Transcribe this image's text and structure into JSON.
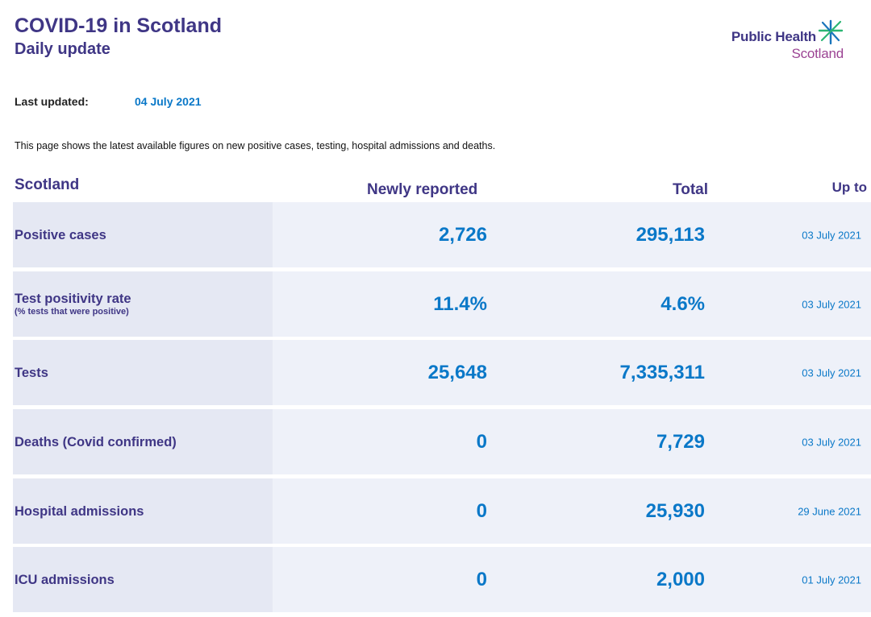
{
  "header": {
    "title": "COVID-19 in Scotland",
    "subtitle": "Daily update"
  },
  "logo": {
    "line1": "Public Health",
    "line2": "Scotland",
    "icon": "star-burst-icon",
    "colors": {
      "purple": "#3f3685",
      "magenta": "#9b4393",
      "green": "#2bb673",
      "blue": "#1a75bb"
    }
  },
  "updated": {
    "label": "Last updated:",
    "value": "04 July 2021"
  },
  "intro": "This page shows the latest available figures on new positive cases, testing, hospital admissions and deaths.",
  "table": {
    "headers": {
      "name": "Scotland",
      "newly_reported": "Newly reported",
      "total": "Total",
      "up_to": "Up to"
    },
    "rows": [
      {
        "name": "Positive cases",
        "sub": "",
        "newly_reported": "2,726",
        "total": "295,113",
        "up_to": "03 July 2021"
      },
      {
        "name": "Test positivity rate",
        "sub": "(% tests that were positive)",
        "newly_reported": "11.4%",
        "total": "4.6%",
        "up_to": "03 July 2021"
      },
      {
        "name": "Tests",
        "sub": "",
        "newly_reported": "25,648",
        "total": "7,335,311",
        "up_to": "03 July 2021"
      },
      {
        "name": "Deaths (Covid confirmed)",
        "sub": "",
        "newly_reported": "0",
        "total": "7,729",
        "up_to": "03 July 2021"
      },
      {
        "name": "Hospital admissions",
        "sub": "",
        "newly_reported": "0",
        "total": "25,930",
        "up_to": "29 June 2021"
      },
      {
        "name": "ICU admissions",
        "sub": "",
        "newly_reported": "0",
        "total": "2,000",
        "up_to": "01 July 2021"
      }
    ]
  },
  "colors": {
    "heading": "#3f3685",
    "value": "#0a78c8",
    "row_bg": "#eef1f9",
    "name_bg": "#e5e8f3"
  }
}
